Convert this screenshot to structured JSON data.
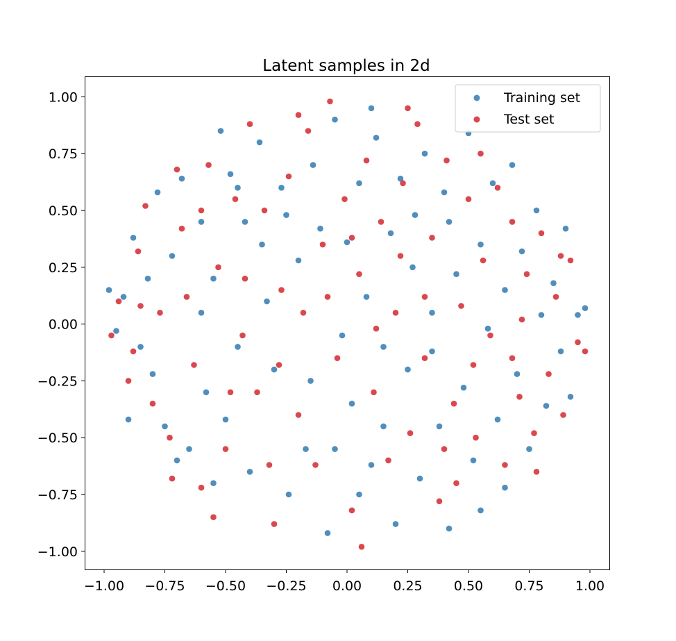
{
  "chart_data": {
    "type": "scatter",
    "title": "Latent samples in 2d",
    "xlabel": "",
    "ylabel": "",
    "xlim": [
      -1.08,
      1.08
    ],
    "ylim": [
      -1.08,
      1.09
    ],
    "xticks": [
      -1.0,
      -0.75,
      -0.5,
      -0.25,
      0.0,
      0.25,
      0.5,
      0.75,
      1.0
    ],
    "yticks": [
      -1.0,
      -0.75,
      -0.5,
      -0.25,
      0.0,
      0.25,
      0.5,
      0.75,
      1.0
    ],
    "xtick_labels": [
      "−1.00",
      "−0.75",
      "−0.50",
      "−0.25",
      "0.00",
      "0.25",
      "0.50",
      "0.75",
      "1.00"
    ],
    "ytick_labels": [
      "−1.00",
      "−0.75",
      "−0.50",
      "−0.25",
      "0.00",
      "0.25",
      "0.50",
      "0.75",
      "1.00"
    ],
    "grid": false,
    "legend_position": "top-right",
    "series": [
      {
        "name": "Training set",
        "color": "#3c82b6",
        "points": [
          [
            -0.98,
            0.15
          ],
          [
            -0.95,
            -0.03
          ],
          [
            -0.92,
            0.12
          ],
          [
            -0.88,
            0.38
          ],
          [
            -0.85,
            -0.1
          ],
          [
            -0.82,
            0.2
          ],
          [
            -0.78,
            0.58
          ],
          [
            -0.75,
            -0.45
          ],
          [
            -0.72,
            0.3
          ],
          [
            -0.68,
            0.64
          ],
          [
            -0.65,
            -0.55
          ],
          [
            -0.6,
            0.45
          ],
          [
            -0.58,
            -0.3
          ],
          [
            -0.55,
            0.2
          ],
          [
            -0.52,
            0.85
          ],
          [
            -0.5,
            -0.42
          ],
          [
            -0.48,
            0.66
          ],
          [
            -0.45,
            -0.1
          ],
          [
            -0.42,
            0.45
          ],
          [
            -0.4,
            -0.65
          ],
          [
            -0.36,
            0.8
          ],
          [
            -0.33,
            0.1
          ],
          [
            -0.3,
            -0.2
          ],
          [
            -0.27,
            0.6
          ],
          [
            -0.24,
            -0.75
          ],
          [
            -0.2,
            0.28
          ],
          [
            -0.17,
            -0.55
          ],
          [
            -0.14,
            0.7
          ],
          [
            -0.11,
            0.42
          ],
          [
            -0.08,
            -0.92
          ],
          [
            -0.05,
            0.9
          ],
          [
            -0.02,
            -0.05
          ],
          [
            0.0,
            0.36
          ],
          [
            0.02,
            -0.35
          ],
          [
            0.05,
            0.62
          ],
          [
            0.08,
            0.12
          ],
          [
            0.1,
            -0.62
          ],
          [
            0.12,
            0.82
          ],
          [
            0.15,
            -0.1
          ],
          [
            0.18,
            0.4
          ],
          [
            0.2,
            -0.88
          ],
          [
            0.22,
            0.64
          ],
          [
            0.25,
            -0.2
          ],
          [
            0.27,
            0.25
          ],
          [
            0.3,
            -0.68
          ],
          [
            0.32,
            0.75
          ],
          [
            0.35,
            0.05
          ],
          [
            0.38,
            -0.45
          ],
          [
            0.4,
            0.58
          ],
          [
            0.42,
            -0.9
          ],
          [
            0.45,
            0.22
          ],
          [
            0.48,
            -0.28
          ],
          [
            0.5,
            0.84
          ],
          [
            0.52,
            -0.6
          ],
          [
            0.55,
            0.35
          ],
          [
            0.58,
            -0.02
          ],
          [
            0.6,
            0.62
          ],
          [
            0.62,
            -0.42
          ],
          [
            0.65,
            0.15
          ],
          [
            0.68,
            0.7
          ],
          [
            0.7,
            -0.22
          ],
          [
            0.72,
            0.32
          ],
          [
            0.75,
            -0.55
          ],
          [
            0.78,
            0.5
          ],
          [
            0.8,
            0.04
          ],
          [
            0.82,
            -0.36
          ],
          [
            0.85,
            0.18
          ],
          [
            0.88,
            -0.12
          ],
          [
            0.9,
            0.42
          ],
          [
            0.92,
            -0.32
          ],
          [
            0.95,
            0.04
          ],
          [
            0.98,
            0.07
          ],
          [
            -0.9,
            -0.42
          ],
          [
            -0.7,
            -0.6
          ],
          [
            -0.45,
            0.6
          ],
          [
            -0.25,
            0.48
          ],
          [
            0.05,
            -0.75
          ],
          [
            0.28,
            0.48
          ],
          [
            0.55,
            -0.82
          ],
          [
            -0.6,
            0.05
          ],
          [
            -0.15,
            -0.25
          ],
          [
            0.15,
            -0.45
          ],
          [
            0.42,
            0.45
          ],
          [
            -0.35,
            0.35
          ],
          [
            0.65,
            -0.72
          ],
          [
            -0.8,
            -0.22
          ],
          [
            0.1,
            0.95
          ],
          [
            -0.05,
            -0.55
          ],
          [
            0.35,
            -0.12
          ],
          [
            -0.55,
            -0.7
          ]
        ]
      },
      {
        "name": "Test set",
        "color": "#d6343b",
        "points": [
          [
            -0.97,
            -0.05
          ],
          [
            -0.94,
            0.1
          ],
          [
            -0.9,
            -0.25
          ],
          [
            -0.86,
            0.32
          ],
          [
            -0.83,
            0.52
          ],
          [
            -0.8,
            -0.35
          ],
          [
            -0.77,
            0.05
          ],
          [
            -0.73,
            -0.5
          ],
          [
            -0.7,
            0.68
          ],
          [
            -0.66,
            0.12
          ],
          [
            -0.63,
            -0.18
          ],
          [
            -0.6,
            -0.72
          ],
          [
            -0.57,
            0.7
          ],
          [
            -0.53,
            0.25
          ],
          [
            -0.5,
            -0.55
          ],
          [
            -0.46,
            0.55
          ],
          [
            -0.43,
            -0.05
          ],
          [
            -0.4,
            0.88
          ],
          [
            -0.37,
            -0.3
          ],
          [
            -0.34,
            0.5
          ],
          [
            -0.3,
            -0.88
          ],
          [
            -0.27,
            0.15
          ],
          [
            -0.24,
            0.65
          ],
          [
            -0.2,
            -0.4
          ],
          [
            -0.16,
            0.85
          ],
          [
            -0.13,
            -0.62
          ],
          [
            -0.1,
            0.35
          ],
          [
            -0.07,
            0.98
          ],
          [
            -0.04,
            -0.15
          ],
          [
            -0.01,
            0.55
          ],
          [
            0.02,
            -0.82
          ],
          [
            0.05,
            0.22
          ],
          [
            0.08,
            0.72
          ],
          [
            0.11,
            -0.3
          ],
          [
            0.14,
            0.45
          ],
          [
            0.17,
            -0.6
          ],
          [
            0.2,
            0.05
          ],
          [
            0.23,
            0.62
          ],
          [
            0.26,
            -0.48
          ],
          [
            0.29,
            0.88
          ],
          [
            0.32,
            -0.15
          ],
          [
            0.35,
            0.38
          ],
          [
            0.38,
            -0.78
          ],
          [
            0.41,
            0.72
          ],
          [
            0.44,
            -0.35
          ],
          [
            0.47,
            0.08
          ],
          [
            0.5,
            0.55
          ],
          [
            0.53,
            -0.5
          ],
          [
            0.56,
            0.28
          ],
          [
            0.59,
            -0.05
          ],
          [
            0.62,
            0.6
          ],
          [
            0.65,
            -0.62
          ],
          [
            0.68,
            0.45
          ],
          [
            0.71,
            -0.32
          ],
          [
            0.74,
            0.22
          ],
          [
            0.77,
            -0.48
          ],
          [
            0.8,
            0.4
          ],
          [
            0.83,
            -0.22
          ],
          [
            0.86,
            0.12
          ],
          [
            0.89,
            -0.4
          ],
          [
            0.92,
            0.28
          ],
          [
            0.95,
            -0.08
          ],
          [
            0.98,
            -0.12
          ],
          [
            -0.88,
            -0.12
          ],
          [
            -0.68,
            0.42
          ],
          [
            -0.48,
            -0.3
          ],
          [
            -0.28,
            -0.18
          ],
          [
            -0.08,
            0.12
          ],
          [
            0.12,
            -0.02
          ],
          [
            0.32,
            0.12
          ],
          [
            0.52,
            -0.18
          ],
          [
            0.72,
            0.02
          ],
          [
            -0.72,
            -0.68
          ],
          [
            -0.42,
            0.2
          ],
          [
            -0.18,
            0.05
          ],
          [
            0.02,
            0.38
          ],
          [
            0.22,
            0.3
          ],
          [
            0.45,
            -0.7
          ],
          [
            0.68,
            -0.15
          ],
          [
            0.88,
            0.3
          ],
          [
            -0.6,
            0.5
          ],
          [
            -0.32,
            -0.62
          ],
          [
            0.06,
            -0.98
          ],
          [
            0.25,
            0.95
          ],
          [
            0.55,
            0.75
          ],
          [
            -0.2,
            0.92
          ],
          [
            0.4,
            -0.55
          ],
          [
            -0.55,
            -0.85
          ],
          [
            0.78,
            -0.65
          ],
          [
            -0.85,
            0.08
          ]
        ]
      }
    ]
  }
}
